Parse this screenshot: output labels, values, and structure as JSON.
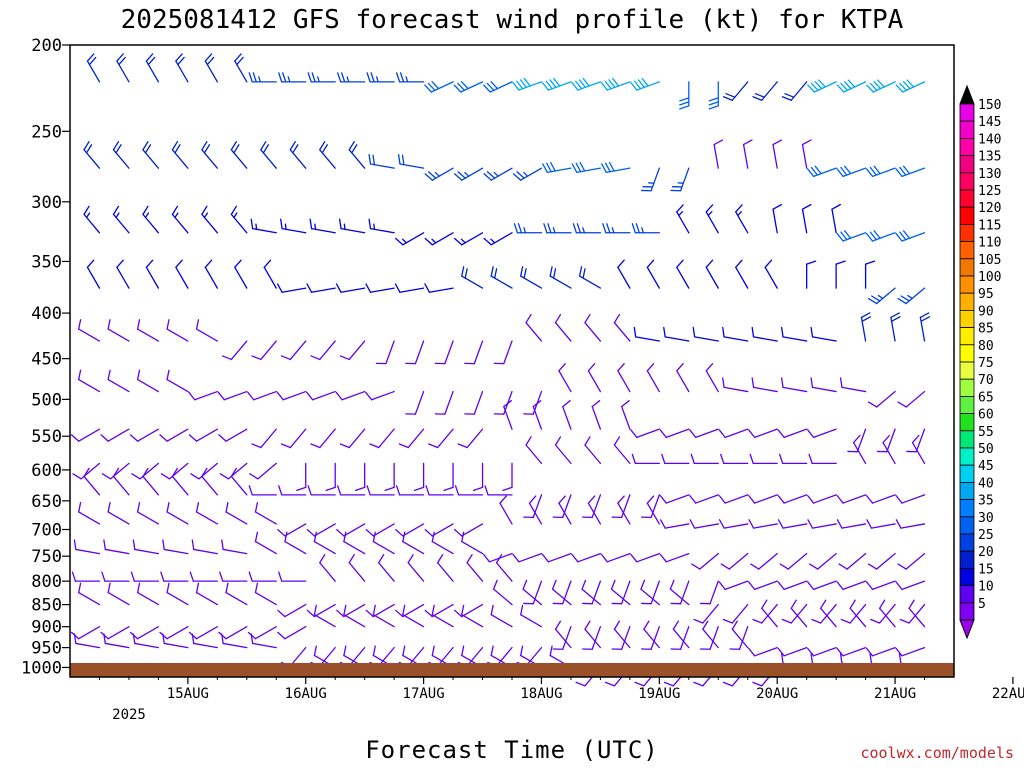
{
  "chart_data": {
    "type": "wind-barb-profile",
    "title": "2025081412 GFS forecast wind profile (kt) for KTPA",
    "xlabel": "Forecast Time (UTC)",
    "ylabel": "",
    "x_tick_labels": [
      "15AUG",
      "16AUG",
      "17AUG",
      "18AUG",
      "19AUG",
      "20AUG",
      "21AUG",
      "22AUG"
    ],
    "x_year_label": "2025",
    "x_range_hours": [
      -12,
      168
    ],
    "y_scale": "log-pressure",
    "y_range": [
      1025,
      200
    ],
    "y_tick_labels": [
      "200",
      "250",
      "300",
      "350",
      "400",
      "450",
      "500",
      "550",
      "600",
      "650",
      "700",
      "750",
      "800",
      "850",
      "900",
      "950",
      "1000"
    ],
    "barb_interval_hours": 6,
    "colorbar": {
      "labels": [
        "150",
        "145",
        "140",
        "135",
        "130",
        "125",
        "120",
        "115",
        "110",
        "105",
        "100",
        "95",
        "90",
        "85",
        "80",
        "75",
        "70",
        "65",
        "60",
        "55",
        "50",
        "45",
        "40",
        "35",
        "30",
        "25",
        "20",
        "15",
        "10",
        "5"
      ],
      "colors": [
        "#e800e8",
        "#f000c8",
        "#ff00a8",
        "#f00080",
        "#ff0060",
        "#ff0030",
        "#ff0000",
        "#ff3000",
        "#ff6000",
        "#f07800",
        "#ff9000",
        "#ffb000",
        "#ffd000",
        "#ffee00",
        "#ffff00",
        "#e8ff40",
        "#a0ff40",
        "#60f040",
        "#20e020",
        "#00e878",
        "#00f0c8",
        "#00d0f0",
        "#00a8f0",
        "#0080ff",
        "#0060f0",
        "#0040e0",
        "#0020d0",
        "#0000e0",
        "#6000f0",
        "#8000f0"
      ]
    },
    "levels": [
      {
        "p": 220,
        "segments": [
          {
            "h": [
              -12,
              24
            ],
            "dir": 330,
            "spd": 20
          },
          {
            "h": [
              30,
              60
            ],
            "dir": 270,
            "spd": 25
          },
          {
            "h": [
              66,
              78
            ],
            "dir": 245,
            "spd": 30
          },
          {
            "h": [
              84,
              108
            ],
            "dir": 250,
            "spd": 40
          },
          {
            "h": [
              114,
              120
            ],
            "dir": 180,
            "spd": 30
          },
          {
            "h": [
              126,
              138
            ],
            "dir": 220,
            "spd": 18
          },
          {
            "h": [
              144,
              168
            ],
            "dir": 245,
            "spd": 38
          }
        ]
      },
      {
        "p": 275,
        "segments": [
          {
            "h": [
              -12,
              48
            ],
            "dir": 320,
            "spd": 18
          },
          {
            "h": [
              54,
              60
            ],
            "dir": 280,
            "spd": 22
          },
          {
            "h": [
              66,
              84
            ],
            "dir": 240,
            "spd": 25
          },
          {
            "h": [
              90,
              102
            ],
            "dir": 260,
            "spd": 30
          },
          {
            "h": [
              108,
              114
            ],
            "dir": 200,
            "spd": 25
          },
          {
            "h": [
              120,
              138
            ],
            "dir": 350,
            "spd": 10
          },
          {
            "h": [
              144,
              168
            ],
            "dir": 250,
            "spd": 30
          }
        ]
      },
      {
        "p": 325,
        "segments": [
          {
            "h": [
              -12,
              24
            ],
            "dir": 320,
            "spd": 15
          },
          {
            "h": [
              30,
              54
            ],
            "dir": 280,
            "spd": 15
          },
          {
            "h": [
              60,
              78
            ],
            "dir": 240,
            "spd": 15
          },
          {
            "h": [
              84,
              108
            ],
            "dir": 270,
            "spd": 25
          },
          {
            "h": [
              114,
              126
            ],
            "dir": 330,
            "spd": 15
          },
          {
            "h": [
              132,
              144
            ],
            "dir": 350,
            "spd": 12
          },
          {
            "h": [
              150,
              168
            ],
            "dir": 250,
            "spd": 28
          }
        ]
      },
      {
        "p": 375,
        "segments": [
          {
            "h": [
              -12,
              30
            ],
            "dir": 330,
            "spd": 12
          },
          {
            "h": [
              36,
              66
            ],
            "dir": 260,
            "spd": 12
          },
          {
            "h": [
              72,
              96
            ],
            "dir": 300,
            "spd": 18
          },
          {
            "h": [
              102,
              132
            ],
            "dir": 330,
            "spd": 12
          },
          {
            "h": [
              138,
              150
            ],
            "dir": 360,
            "spd": 12
          },
          {
            "h": [
              156,
              168
            ],
            "dir": 230,
            "spd": 25
          }
        ]
      },
      {
        "p": 430,
        "segments": [
          {
            "h": [
              -12,
              18
            ],
            "dir": 300,
            "spd": 10
          },
          {
            "h": [
              24,
              48
            ],
            "dir": 220,
            "spd": 10
          },
          {
            "h": [
              54,
              78
            ],
            "dir": 200,
            "spd": 10
          },
          {
            "h": [
              84,
              102
            ],
            "dir": 320,
            "spd": 10
          },
          {
            "h": [
              108,
              144
            ],
            "dir": 280,
            "spd": 12
          },
          {
            "h": [
              150,
              168
            ],
            "dir": 350,
            "spd": 18
          }
        ]
      },
      {
        "p": 490,
        "segments": [
          {
            "h": [
              -12,
              12
            ],
            "dir": 300,
            "spd": 8
          },
          {
            "h": [
              18,
              54
            ],
            "dir": 250,
            "spd": 10
          },
          {
            "h": [
              60,
              84
            ],
            "dir": 200,
            "spd": 10
          },
          {
            "h": [
              90,
              120
            ],
            "dir": 330,
            "spd": 10
          },
          {
            "h": [
              126,
              150
            ],
            "dir": 280,
            "spd": 10
          },
          {
            "h": [
              156,
              168
            ],
            "dir": 230,
            "spd": 8
          }
        ]
      },
      {
        "p": 540,
        "segments": [
          {
            "h": [
              -12,
              24
            ],
            "dir": 240,
            "spd": 10
          },
          {
            "h": [
              30,
              72
            ],
            "dir": 220,
            "spd": 10
          },
          {
            "h": [
              78,
              102
            ],
            "dir": 340,
            "spd": 8
          },
          {
            "h": [
              108,
              144
            ],
            "dir": 250,
            "spd": 10
          },
          {
            "h": [
              150,
              168
            ],
            "dir": 200,
            "spd": 8
          }
        ]
      },
      {
        "p": 590,
        "segments": [
          {
            "h": [
              -12,
              30
            ],
            "dir": 230,
            "spd": 10
          },
          {
            "h": [
              36,
              78
            ],
            "dir": 180,
            "spd": 8
          },
          {
            "h": [
              84,
              102
            ],
            "dir": 320,
            "spd": 8
          },
          {
            "h": [
              108,
              144
            ],
            "dir": 270,
            "spd": 10
          },
          {
            "h": [
              150,
              168
            ],
            "dir": 330,
            "spd": 8
          }
        ]
      },
      {
        "p": 640,
        "segments": [
          {
            "h": [
              -12,
              24
            ],
            "dir": 320,
            "spd": 8
          },
          {
            "h": [
              30,
              78
            ],
            "dir": 270,
            "spd": 10
          },
          {
            "h": [
              84,
              108
            ],
            "dir": 200,
            "spd": 8
          },
          {
            "h": [
              114,
              168
            ],
            "dir": 250,
            "spd": 10
          }
        ]
      },
      {
        "p": 690,
        "segments": [
          {
            "h": [
              -12,
              30
            ],
            "dir": 300,
            "spd": 8
          },
          {
            "h": [
              36,
              72
            ],
            "dir": 240,
            "spd": 8
          },
          {
            "h": [
              78,
              108
            ],
            "dir": 330,
            "spd": 8
          },
          {
            "h": [
              114,
              168
            ],
            "dir": 260,
            "spd": 10
          }
        ]
      },
      {
        "p": 745,
        "segments": [
          {
            "h": [
              -12,
              24
            ],
            "dir": 280,
            "spd": 8
          },
          {
            "h": [
              30,
              72
            ],
            "dir": 300,
            "spd": 10
          },
          {
            "h": [
              78,
              114
            ],
            "dir": 250,
            "spd": 8
          },
          {
            "h": [
              120,
              168
            ],
            "dir": 230,
            "spd": 10
          }
        ]
      },
      {
        "p": 800,
        "segments": [
          {
            "h": [
              -12,
              36
            ],
            "dir": 270,
            "spd": 8
          },
          {
            "h": [
              42,
              78
            ],
            "dir": 320,
            "spd": 10
          },
          {
            "h": [
              84,
              120
            ],
            "dir": 200,
            "spd": 8
          },
          {
            "h": [
              126,
              168
            ],
            "dir": 250,
            "spd": 10
          }
        ]
      },
      {
        "p": 850,
        "segments": [
          {
            "h": [
              -12,
              30
            ],
            "dir": 300,
            "spd": 8
          },
          {
            "h": [
              36,
              72
            ],
            "dir": 240,
            "spd": 10
          },
          {
            "h": [
              78,
              114
            ],
            "dir": 310,
            "spd": 8
          },
          {
            "h": [
              120,
              168
            ],
            "dir": 220,
            "spd": 10
          }
        ]
      },
      {
        "p": 900,
        "segments": [
          {
            "h": [
              -12,
              36
            ],
            "dir": 240,
            "spd": 8
          },
          {
            "h": [
              42,
              84
            ],
            "dir": 300,
            "spd": 8
          },
          {
            "h": [
              90,
              126
            ],
            "dir": 200,
            "spd": 8
          },
          {
            "h": [
              132,
              168
            ],
            "dir": 320,
            "spd": 8
          }
        ]
      },
      {
        "p": 950,
        "segments": [
          {
            "h": [
              -12,
              30
            ],
            "dir": 280,
            "spd": 8
          },
          {
            "h": [
              36,
              84
            ],
            "dir": 220,
            "spd": 8
          },
          {
            "h": [
              90,
              126
            ],
            "dir": 320,
            "spd": 8
          },
          {
            "h": [
              132,
              168
            ],
            "dir": 250,
            "spd": 8
          }
        ]
      },
      {
        "p": 1000,
        "segments": [
          {
            "h": [
              -12,
              36
            ],
            "dir": 250,
            "spd": 8
          },
          {
            "h": [
              42,
              90
            ],
            "dir": 300,
            "spd": 8
          },
          {
            "h": [
              96,
              132
            ],
            "dir": 220,
            "spd": 8
          },
          {
            "h": [
              138,
              168
            ],
            "dir": 280,
            "spd": 8
          }
        ]
      }
    ]
  },
  "credit": "coolwx.com/models"
}
